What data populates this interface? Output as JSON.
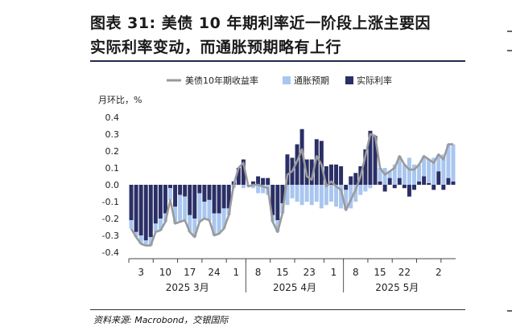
{
  "title_line1": "图表 31: 美债 10 年期利率近一阶段上涨主要因",
  "title_line2": "实际利率变动，而通胀预期略有上行",
  "source": "资料来源: Macrobond，交银国际",
  "colors": {
    "yield_line": "#9a9a9a",
    "breakeven": "#a9c6ef",
    "real_rate": "#2a2f66",
    "rule": "#1f2b4d"
  },
  "chart_data": {
    "type": "bar",
    "ylabel": "月环比，%",
    "ylim": [
      -0.4,
      0.4
    ],
    "yticks": [
      "0.4",
      "0.3",
      "0.2",
      "0.1",
      "0.0",
      "-0.1",
      "-0.2",
      "-0.3",
      "-0.4"
    ],
    "xticks": [
      "3",
      "10",
      "17",
      "24",
      "1",
      "8",
      "15",
      "23",
      "1",
      "8",
      "15",
      "22",
      "2"
    ],
    "month_labels": [
      "2025 3月",
      "2025 4月",
      "2025 5月"
    ],
    "legend": [
      "美债10年期收益率",
      "通胀预期",
      "实际利率"
    ],
    "legend_position": "top",
    "series": [
      {
        "name": "美债10年期收益率",
        "kind": "line",
        "values": [
          -0.26,
          -0.31,
          -0.35,
          -0.36,
          -0.36,
          -0.28,
          -0.27,
          -0.22,
          -0.09,
          -0.23,
          -0.22,
          -0.21,
          -0.28,
          -0.31,
          -0.22,
          -0.2,
          -0.21,
          -0.3,
          -0.29,
          -0.26,
          -0.18,
          0.0,
          0.1,
          0.13,
          -0.01,
          0.0,
          0.0,
          -0.01,
          -0.02,
          -0.22,
          -0.28,
          -0.17,
          0.06,
          0.08,
          0.14,
          0.21,
          0.05,
          0.03,
          0.17,
          0.12,
          -0.01,
          0.02,
          -0.01,
          -0.03,
          -0.15,
          -0.09,
          -0.03,
          0.05,
          0.17,
          0.3,
          0.29,
          0.1,
          0.06,
          0.08,
          0.1,
          0.17,
          0.12,
          0.09,
          0.09,
          0.12,
          0.17,
          0.15,
          0.13,
          0.18,
          0.15,
          0.24,
          0.24
        ]
      },
      {
        "name": "通胀预期",
        "kind": "bar",
        "values": [
          -0.05,
          -0.03,
          -0.05,
          -0.03,
          -0.05,
          -0.05,
          -0.07,
          -0.05,
          -0.07,
          -0.1,
          -0.16,
          -0.14,
          -0.1,
          -0.11,
          -0.17,
          -0.1,
          -0.12,
          -0.13,
          -0.12,
          -0.12,
          -0.04,
          -0.02,
          0.0,
          -0.02,
          -0.01,
          -0.02,
          -0.05,
          -0.05,
          -0.06,
          -0.04,
          -0.07,
          -0.06,
          -0.12,
          -0.08,
          -0.1,
          -0.12,
          -0.1,
          -0.12,
          -0.1,
          -0.14,
          -0.12,
          -0.1,
          -0.13,
          -0.14,
          -0.12,
          -0.14,
          -0.1,
          -0.06,
          -0.04,
          -0.02,
          0.0,
          0.08,
          0.1,
          0.04,
          0.12,
          0.13,
          0.12,
          0.16,
          0.12,
          0.1,
          0.12,
          0.14,
          0.16,
          0.1,
          0.18,
          0.2,
          0.22
        ]
      },
      {
        "name": "实际利率",
        "kind": "bar",
        "values": [
          -0.21,
          -0.28,
          -0.3,
          -0.33,
          -0.31,
          -0.23,
          -0.2,
          -0.17,
          -0.02,
          -0.13,
          -0.06,
          -0.07,
          -0.18,
          -0.2,
          -0.05,
          -0.1,
          -0.09,
          -0.17,
          -0.17,
          -0.14,
          -0.14,
          0.02,
          0.1,
          0.15,
          0.0,
          0.02,
          0.05,
          0.04,
          0.04,
          -0.18,
          -0.21,
          -0.11,
          0.18,
          0.16,
          0.24,
          0.33,
          0.15,
          0.15,
          0.27,
          0.26,
          0.11,
          0.12,
          0.12,
          0.11,
          -0.03,
          0.05,
          0.07,
          0.11,
          0.21,
          0.32,
          0.29,
          0.02,
          -0.04,
          0.04,
          -0.02,
          0.04,
          -0.02,
          -0.07,
          -0.03,
          0.02,
          0.05,
          0.01,
          -0.03,
          0.08,
          -0.03,
          0.04,
          0.02
        ]
      }
    ]
  }
}
